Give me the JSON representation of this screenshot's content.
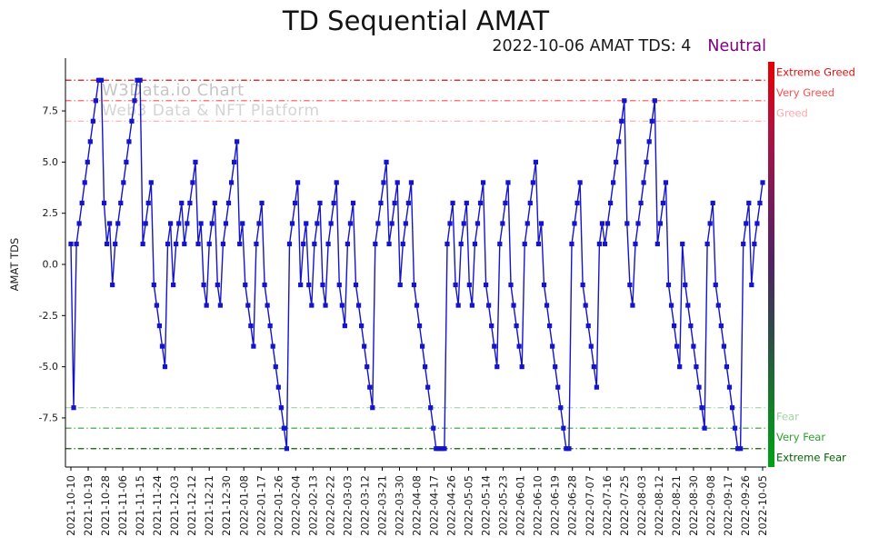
{
  "title": "TD Sequential AMAT",
  "subtitle": {
    "date_text": "2022-10-06 AMAT TDS: 4",
    "status": "Neutral",
    "status_color": "#800080"
  },
  "watermark": {
    "line1": "W3Data.io Chart",
    "line2": "Web3 Data & NFT Platform"
  },
  "chart_data": {
    "type": "line",
    "title": "TD Sequential AMAT",
    "xlabel": "",
    "ylabel": "AMAT TDS",
    "ylim": [
      -9.9,
      9.9
    ],
    "yticks": [
      -7.5,
      -5.0,
      -2.5,
      0.0,
      2.5,
      5.0,
      7.5
    ],
    "grid": false,
    "legend_position": "none",
    "series_color": "#1414cc",
    "marker": "square",
    "start_date": "2021-10-10",
    "end_date": "2022-10-05",
    "x_tick_labels": [
      "2021-10-10",
      "2021-10-19",
      "2021-10-28",
      "2021-11-06",
      "2021-11-15",
      "2021-11-24",
      "2021-12-03",
      "2021-12-12",
      "2021-12-21",
      "2021-12-30",
      "2022-01-08",
      "2022-01-17",
      "2022-01-26",
      "2022-02-04",
      "2022-02-13",
      "2022-02-22",
      "2022-03-03",
      "2022-03-12",
      "2022-03-21",
      "2022-03-30",
      "2022-04-08",
      "2022-04-17",
      "2022-04-26",
      "2022-05-05",
      "2022-05-14",
      "2022-05-23",
      "2022-06-01",
      "2022-06-10",
      "2022-06-19",
      "2022-06-28",
      "2022-07-07",
      "2022-07-16",
      "2022-07-25",
      "2022-08-03",
      "2022-08-12",
      "2022-08-21",
      "2022-08-30",
      "2022-09-08",
      "2022-09-17",
      "2022-09-26",
      "2022-10-05"
    ],
    "values": [
      1,
      -7,
      1,
      2,
      3,
      4,
      5,
      6,
      7,
      8,
      9,
      9,
      3,
      1,
      2,
      -1,
      1,
      2,
      3,
      4,
      5,
      6,
      7,
      8,
      9,
      9,
      1,
      2,
      3,
      4,
      -1,
      -2,
      -3,
      -4,
      -5,
      1,
      2,
      -1,
      1,
      2,
      3,
      1,
      2,
      3,
      4,
      5,
      1,
      2,
      -1,
      -2,
      1,
      2,
      3,
      -1,
      -2,
      1,
      2,
      3,
      4,
      5,
      6,
      1,
      2,
      -1,
      -2,
      -3,
      -4,
      1,
      2,
      3,
      -1,
      -2,
      -3,
      -4,
      -5,
      -6,
      -7,
      -8,
      -9,
      1,
      2,
      3,
      4,
      -1,
      1,
      2,
      -1,
      -2,
      1,
      2,
      3,
      -1,
      -2,
      1,
      2,
      3,
      4,
      -1,
      -2,
      -3,
      1,
      2,
      3,
      -1,
      -2,
      -3,
      -4,
      -5,
      -6,
      -7,
      1,
      2,
      3,
      4,
      5,
      1,
      2,
      3,
      4,
      -1,
      1,
      2,
      3,
      4,
      -1,
      -2,
      -3,
      -4,
      -5,
      -6,
      -7,
      -8,
      -9,
      -9,
      -9,
      -9,
      1,
      2,
      3,
      -1,
      -2,
      1,
      2,
      3,
      -1,
      -2,
      1,
      2,
      3,
      4,
      -1,
      -2,
      -3,
      -4,
      -5,
      1,
      2,
      3,
      4,
      -1,
      -2,
      -3,
      -4,
      -5,
      1,
      2,
      3,
      4,
      5,
      1,
      2,
      -1,
      -2,
      -3,
      -4,
      -5,
      -6,
      -7,
      -8,
      -9,
      -9,
      1,
      2,
      3,
      4,
      -1,
      -2,
      -3,
      -4,
      -5,
      -6,
      1,
      2,
      1,
      2,
      3,
      4,
      5,
      6,
      7,
      8,
      2,
      -1,
      -2,
      1,
      2,
      3,
      4,
      5,
      6,
      7,
      8,
      1,
      2,
      3,
      4,
      -1,
      -2,
      -3,
      -4,
      -5,
      1,
      -1,
      -2,
      -3,
      -4,
      -5,
      -6,
      -7,
      -8,
      1,
      2,
      3,
      -1,
      -2,
      -3,
      -4,
      -5,
      -6,
      -7,
      -8,
      -9,
      -9,
      1,
      2,
      3,
      -1,
      1,
      2,
      3,
      4
    ],
    "thresholds": [
      {
        "value": 9,
        "label": "Extreme Greed",
        "color": "#e01010"
      },
      {
        "value": 8,
        "label": "Very Greed",
        "color": "#ff5050"
      },
      {
        "value": 7,
        "label": "Greed",
        "color": "#ffaaaa"
      },
      {
        "value": -7,
        "label": "Fear",
        "color": "#9fd49f"
      },
      {
        "value": -8,
        "label": "Very Fear",
        "color": "#2e9e2e"
      },
      {
        "value": -9,
        "label": "Extreme Fear",
        "color": "#006400"
      }
    ],
    "sentiment_bar_colors": [
      "#e60000",
      "#b0123e",
      "#7a1b58",
      "#4f2364",
      "#2f4a4a",
      "#167a2a",
      "#00a018"
    ]
  }
}
